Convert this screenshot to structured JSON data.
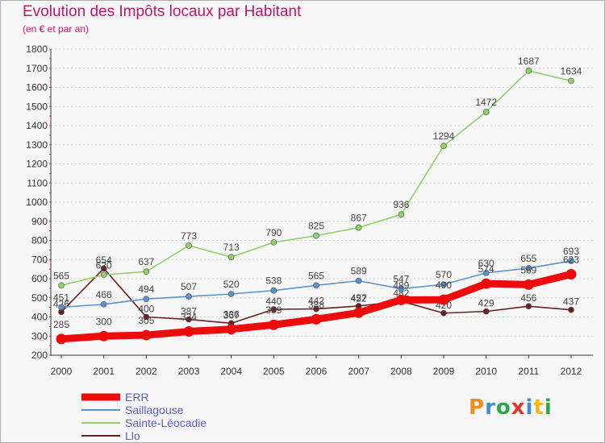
{
  "title": "Evolution des Impôts locaux par Habitant",
  "subtitle": "(en € et par an)",
  "logo": {
    "text": "Proxiti",
    "colors": [
      "#f28c1c",
      "#3a8fd6",
      "#2aa84a",
      "#e6332a",
      "#3a8fd6",
      "#f2b81c",
      "#2aa84a"
    ]
  },
  "chart_data": {
    "type": "line",
    "categories": [
      "2000",
      "2001",
      "2002",
      "2003",
      "2004",
      "2005",
      "2006",
      "2007",
      "2008",
      "2009",
      "2010",
      "2011",
      "2012"
    ],
    "ylim": [
      200,
      1800
    ],
    "yticks": [
      200,
      300,
      400,
      500,
      600,
      700,
      800,
      900,
      1000,
      1100,
      1200,
      1300,
      1400,
      1500,
      1600,
      1700,
      1800
    ],
    "grid": "horizontal dashed",
    "legend": "bottom-left",
    "series": [
      {
        "name": "Llo",
        "color": "#6b1f1f",
        "values": [
          426,
          654,
          400,
          387,
          367,
          440,
          442,
          457,
          482,
          420,
          429,
          456,
          437
        ],
        "labels": [
          "426",
          "654",
          "400",
          "387",
          "367",
          "440",
          "442",
          "457",
          "482",
          "420",
          "429",
          "456",
          "437"
        ]
      },
      {
        "name": "Sainte-Léocadie",
        "color": "#8fd16b",
        "values": [
          565,
          620,
          637,
          773,
          713,
          790,
          825,
          867,
          936,
          1294,
          1472,
          1687,
          1634
        ],
        "labels": [
          "565",
          "620",
          "637",
          "773",
          "713",
          "790",
          "825",
          "867",
          "936",
          "1294",
          "1472",
          "1687",
          "1634"
        ]
      },
      {
        "name": "Saillagouse",
        "color": "#5a93cf",
        "values": [
          451,
          466,
          494,
          507,
          520,
          538,
          565,
          589,
          547,
          570,
          630,
          655,
          693
        ],
        "labels": [
          "451",
          "466",
          "494",
          "507",
          "520",
          "538",
          "565",
          "589",
          "547",
          "570",
          "630",
          "655",
          "693"
        ]
      },
      {
        "name": "ERR",
        "color": "#ee0b0b",
        "values": [
          285,
          300,
          305,
          324,
          336,
          359,
          388,
          422,
          489,
          490,
          574,
          569,
          623
        ],
        "labels": [
          "285",
          "300",
          "305",
          "324",
          "336",
          "359",
          "388",
          "422",
          "489",
          "490",
          "574",
          "569",
          "623"
        ]
      }
    ]
  }
}
